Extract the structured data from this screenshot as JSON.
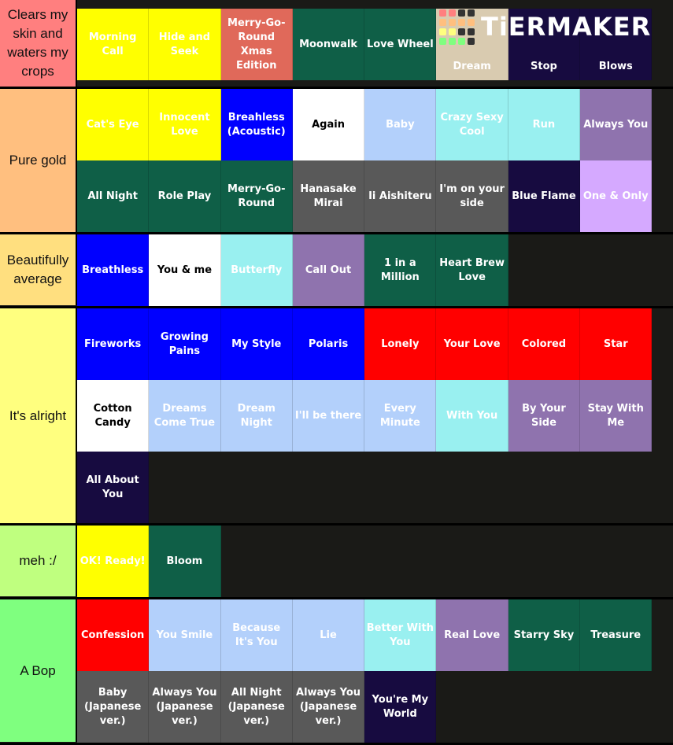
{
  "logo": {
    "text": "TiERMAKER",
    "grid_colors": [
      "#ff7f7f",
      "#ff7f7f",
      "#333",
      "#333",
      "#ffbf7f",
      "#ffbf7f",
      "#ffbf7f",
      "#ffbf7f",
      "#ffff7f",
      "#ffff7f",
      "#333",
      "#333",
      "#7fff7f",
      "#7fff7f",
      "#7fff7f",
      "#333"
    ]
  },
  "tiers": [
    {
      "label": "Clears my skin and waters my crops",
      "color": "#ff7f7f",
      "items": [
        {
          "title": "Morning Call",
          "bg": "#ffff00"
        },
        {
          "title": "Hide and Seek",
          "bg": "#ffff00"
        },
        {
          "title": "Merry-Go-Round Xmas Edition",
          "bg": "#e0695a"
        },
        {
          "title": "Moonwalk",
          "bg": "#0f5f47"
        },
        {
          "title": "Love Wheel",
          "bg": "#0f5f47"
        },
        {
          "title": "Dream",
          "bg": "#d9cbb0"
        },
        {
          "title": "Stop",
          "bg": "#170b40"
        },
        {
          "title": "Blows",
          "bg": "#170b40"
        }
      ]
    },
    {
      "label": "Pure gold",
      "color": "#ffbf7f",
      "items": [
        {
          "title": "Cat's Eye",
          "bg": "#ffff00"
        },
        {
          "title": "Innocent Love",
          "bg": "#ffff00"
        },
        {
          "title": "Breahless (Acoustic)",
          "bg": "#0000ff"
        },
        {
          "title": "Again",
          "bg": "#ffffff",
          "dark": true
        },
        {
          "title": "Baby",
          "bg": "#b3d0fb"
        },
        {
          "title": "Crazy Sexy Cool",
          "bg": "#99f0f0"
        },
        {
          "title": "Run",
          "bg": "#99f0f0"
        },
        {
          "title": "Always You",
          "bg": "#8f73ae"
        },
        {
          "title": "All Night",
          "bg": "#0f5f47"
        },
        {
          "title": "Role Play",
          "bg": "#0f5f47"
        },
        {
          "title": "Merry-Go-Round",
          "bg": "#0f5f47"
        },
        {
          "title": "Hanasake Mirai",
          "bg": "#595959"
        },
        {
          "title": "Ii Aishiteru",
          "bg": "#595959"
        },
        {
          "title": "I'm on your side",
          "bg": "#595959"
        },
        {
          "title": "Blue Flame",
          "bg": "#170b40"
        },
        {
          "title": "One & Only",
          "bg": "#d5a9ff"
        }
      ]
    },
    {
      "label": "Beautifully average",
      "color": "#ffdf7f",
      "items": [
        {
          "title": "Breathless",
          "bg": "#0000ff"
        },
        {
          "title": "You & me",
          "bg": "#ffffff",
          "dark": true
        },
        {
          "title": "Butterfly",
          "bg": "#99f0f0"
        },
        {
          "title": "Call Out",
          "bg": "#8f73ae"
        },
        {
          "title": "1 in a Million",
          "bg": "#0f5f47"
        },
        {
          "title": "Heart Brew Love",
          "bg": "#0f5f47"
        }
      ]
    },
    {
      "label": "It's alright",
      "color": "#ffff7f",
      "items": [
        {
          "title": "Fireworks",
          "bg": "#0000ff"
        },
        {
          "title": "Growing Pains",
          "bg": "#0000ff"
        },
        {
          "title": "My Style",
          "bg": "#0000ff"
        },
        {
          "title": "Polaris",
          "bg": "#0000ff"
        },
        {
          "title": "Lonely",
          "bg": "#ff0000"
        },
        {
          "title": "Your Love",
          "bg": "#ff0000"
        },
        {
          "title": "Colored",
          "bg": "#ff0000"
        },
        {
          "title": "Star",
          "bg": "#ff0000"
        },
        {
          "title": "Cotton Candy",
          "bg": "#ffffff",
          "dark": true
        },
        {
          "title": "Dreams Come True",
          "bg": "#b3d0fb"
        },
        {
          "title": "Dream Night",
          "bg": "#b3d0fb"
        },
        {
          "title": "I'll be there",
          "bg": "#b3d0fb"
        },
        {
          "title": "Every Minute",
          "bg": "#b3d0fb"
        },
        {
          "title": "With You",
          "bg": "#99f0f0"
        },
        {
          "title": "By Your Side",
          "bg": "#8f73ae"
        },
        {
          "title": "Stay With Me",
          "bg": "#8f73ae"
        },
        {
          "title": "All About You",
          "bg": "#170b40"
        }
      ]
    },
    {
      "label": "meh :/",
      "color": "#bfff7f",
      "items": [
        {
          "title": "OK! Ready!",
          "bg": "#ffff00"
        },
        {
          "title": "Bloom",
          "bg": "#0f5f47"
        }
      ]
    },
    {
      "label": "A Bop",
      "color": "#7fff7f",
      "items": [
        {
          "title": "Confession",
          "bg": "#ff0000"
        },
        {
          "title": "You Smile",
          "bg": "#b3d0fb"
        },
        {
          "title": "Because It's You",
          "bg": "#b3d0fb"
        },
        {
          "title": "Lie",
          "bg": "#b3d0fb"
        },
        {
          "title": "Better With You",
          "bg": "#99f0f0"
        },
        {
          "title": "Real Love",
          "bg": "#8f73ae"
        },
        {
          "title": "Starry Sky",
          "bg": "#0f5f47"
        },
        {
          "title": "Treasure",
          "bg": "#0f5f47"
        },
        {
          "title": "Baby (Japanese ver.)",
          "bg": "#595959"
        },
        {
          "title": "Always You (Japanese ver.)",
          "bg": "#595959"
        },
        {
          "title": "All Night (Japanese ver.)",
          "bg": "#595959"
        },
        {
          "title": "Always You (Japanese ver.)",
          "bg": "#595959"
        },
        {
          "title": "You're My World",
          "bg": "#170b40"
        }
      ]
    }
  ]
}
